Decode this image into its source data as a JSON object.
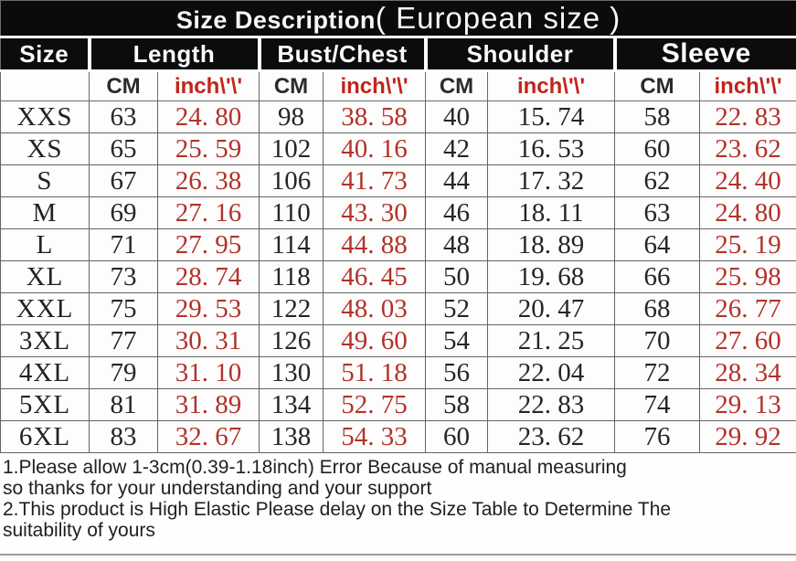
{
  "title": {
    "main": "Size Description",
    "paren": "( European size )"
  },
  "columns": {
    "size_label": "Size",
    "groups": [
      {
        "label": "Length"
      },
      {
        "label": "Bust/Chest"
      },
      {
        "label": "Shoulder"
      },
      {
        "label": "Sleeve"
      }
    ],
    "unit_cm": "CM",
    "unit_inch": "inch\\'\\'"
  },
  "rows": [
    {
      "size": "XXS",
      "length_cm": "63",
      "length_in": "24. 80",
      "bust_cm": "98",
      "bust_in": "38. 58",
      "shoulder_cm": "40",
      "shoulder_in": "15. 74",
      "sleeve_cm": "58",
      "sleeve_in": "22. 83"
    },
    {
      "size": "XS",
      "length_cm": "65",
      "length_in": "25. 59",
      "bust_cm": "102",
      "bust_in": "40. 16",
      "shoulder_cm": "42",
      "shoulder_in": "16. 53",
      "sleeve_cm": "60",
      "sleeve_in": "23. 62"
    },
    {
      "size": "S",
      "length_cm": "67",
      "length_in": "26. 38",
      "bust_cm": "106",
      "bust_in": "41. 73",
      "shoulder_cm": "44",
      "shoulder_in": "17. 32",
      "sleeve_cm": "62",
      "sleeve_in": "24. 40"
    },
    {
      "size": "M",
      "length_cm": "69",
      "length_in": "27. 16",
      "bust_cm": "110",
      "bust_in": "43. 30",
      "shoulder_cm": "46",
      "shoulder_in": "18. 11",
      "sleeve_cm": "63",
      "sleeve_in": "24. 80"
    },
    {
      "size": "L",
      "length_cm": "71",
      "length_in": "27. 95",
      "bust_cm": "114",
      "bust_in": "44. 88",
      "shoulder_cm": "48",
      "shoulder_in": "18. 89",
      "sleeve_cm": "64",
      "sleeve_in": "25. 19"
    },
    {
      "size": "XL",
      "length_cm": "73",
      "length_in": "28. 74",
      "bust_cm": "118",
      "bust_in": "46. 45",
      "shoulder_cm": "50",
      "shoulder_in": "19. 68",
      "sleeve_cm": "66",
      "sleeve_in": "25. 98"
    },
    {
      "size": "XXL",
      "length_cm": "75",
      "length_in": "29. 53",
      "bust_cm": "122",
      "bust_in": "48. 03",
      "shoulder_cm": "52",
      "shoulder_in": "20. 47",
      "sleeve_cm": "68",
      "sleeve_in": "26. 77"
    },
    {
      "size": "3XL",
      "length_cm": "77",
      "length_in": "30. 31",
      "bust_cm": "126",
      "bust_in": "49. 60",
      "shoulder_cm": "54",
      "shoulder_in": "21. 25",
      "sleeve_cm": "70",
      "sleeve_in": "27. 60"
    },
    {
      "size": "4XL",
      "length_cm": "79",
      "length_in": "31. 10",
      "bust_cm": "130",
      "bust_in": "51. 18",
      "shoulder_cm": "56",
      "shoulder_in": "22. 04",
      "sleeve_cm": "72",
      "sleeve_in": "28. 34"
    },
    {
      "size": "5XL",
      "length_cm": "81",
      "length_in": "31. 89",
      "bust_cm": "134",
      "bust_in": "52. 75",
      "shoulder_cm": "58",
      "shoulder_in": "22. 83",
      "sleeve_cm": "74",
      "sleeve_in": "29. 13"
    },
    {
      "size": "6XL",
      "length_cm": "83",
      "length_in": "32. 67",
      "bust_cm": "138",
      "bust_in": "54. 33",
      "shoulder_cm": "60",
      "shoulder_in": "23. 62",
      "sleeve_cm": "76",
      "sleeve_in": "29. 92"
    }
  ],
  "notes": [
    "1.Please allow 1-3cm(0.39-1.18inch) Error Because of manual measuring",
    "so thanks for your understanding and your support",
    "2.This product is High Elastic Please delay on the Size Table to Determine The",
    "suitability of yours"
  ],
  "colors": {
    "header_bg": "#0b0b0b",
    "header_text": "#ffffff",
    "accent_red_header": "#c2241c",
    "accent_red_value": "#b23229",
    "value_text": "#222222",
    "border": "#646464"
  },
  "chart_data": {
    "type": "table",
    "title": "Size Description ( European size )",
    "columns": [
      "Size",
      "Length CM",
      "Length inch",
      "Bust/Chest CM",
      "Bust/Chest inch",
      "Shoulder CM",
      "Shoulder inch",
      "Sleeve CM",
      "Sleeve inch"
    ],
    "rows": [
      [
        "XXS",
        63,
        24.8,
        98,
        38.58,
        40,
        15.74,
        58,
        22.83
      ],
      [
        "XS",
        65,
        25.59,
        102,
        40.16,
        42,
        16.53,
        60,
        23.62
      ],
      [
        "S",
        67,
        26.38,
        106,
        41.73,
        44,
        17.32,
        62,
        24.4
      ],
      [
        "M",
        69,
        27.16,
        110,
        43.3,
        46,
        18.11,
        63,
        24.8
      ],
      [
        "L",
        71,
        27.95,
        114,
        44.88,
        48,
        18.89,
        64,
        25.19
      ],
      [
        "XL",
        73,
        28.74,
        118,
        46.45,
        50,
        19.68,
        66,
        25.98
      ],
      [
        "XXL",
        75,
        29.53,
        122,
        48.03,
        52,
        20.47,
        68,
        26.77
      ],
      [
        "3XL",
        77,
        30.31,
        126,
        49.6,
        54,
        21.25,
        70,
        27.6
      ],
      [
        "4XL",
        79,
        31.1,
        130,
        51.18,
        56,
        22.04,
        72,
        28.34
      ],
      [
        "5XL",
        81,
        31.89,
        134,
        52.75,
        58,
        22.83,
        74,
        29.13
      ],
      [
        "6XL",
        83,
        32.67,
        138,
        54.33,
        60,
        23.62,
        76,
        29.92
      ]
    ],
    "notes": [
      "1.Please allow 1-3cm(0.39-1.18inch) Error Because of manual measuring so thanks for your understanding and your support",
      "2.This product is High Elastic Please delay on the Size Table to Determine The suitability of yours"
    ]
  }
}
